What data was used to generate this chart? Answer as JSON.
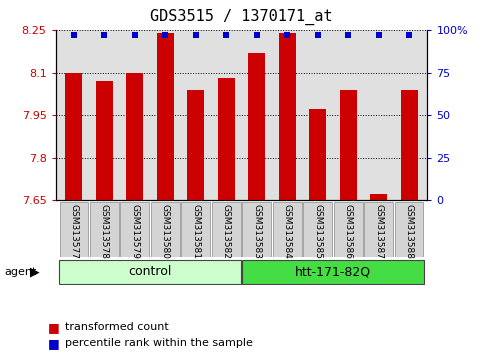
{
  "title": "GDS3515 / 1370171_at",
  "samples": [
    "GSM313577",
    "GSM313578",
    "GSM313579",
    "GSM313580",
    "GSM313581",
    "GSM313582",
    "GSM313583",
    "GSM313584",
    "GSM313585",
    "GSM313586",
    "GSM313587",
    "GSM313588"
  ],
  "bar_values": [
    8.1,
    8.07,
    8.1,
    8.24,
    8.04,
    8.08,
    8.17,
    8.24,
    7.97,
    8.04,
    7.67,
    8.04
  ],
  "percentile_values": [
    97,
    97,
    97,
    97,
    97,
    97,
    97,
    97,
    97,
    97,
    97,
    97
  ],
  "bar_color": "#cc0000",
  "percentile_color": "#0000cc",
  "ylim_left": [
    7.65,
    8.25
  ],
  "ylim_right": [
    0,
    100
  ],
  "yticks_left": [
    7.65,
    7.8,
    7.95,
    8.1,
    8.25
  ],
  "yticks_right": [
    0,
    25,
    50,
    75,
    100
  ],
  "ytick_labels_left": [
    "7.65",
    "7.8",
    "7.95",
    "8.1",
    "8.25"
  ],
  "ytick_labels_right": [
    "0",
    "25",
    "50",
    "75",
    "100%"
  ],
  "groups": [
    {
      "label": "control",
      "start": 0,
      "end": 6,
      "color": "#ccffcc"
    },
    {
      "label": "htt-171-82Q",
      "start": 6,
      "end": 12,
      "color": "#44dd44"
    }
  ],
  "agent_label": "agent",
  "bar_width": 0.55,
  "plot_bg_color": "#e0e0e0",
  "base_value": 7.65,
  "title_fontsize": 11,
  "tick_fontsize": 8,
  "sample_fontsize": 6.5,
  "group_fontsize": 9,
  "legend_fontsize": 8
}
